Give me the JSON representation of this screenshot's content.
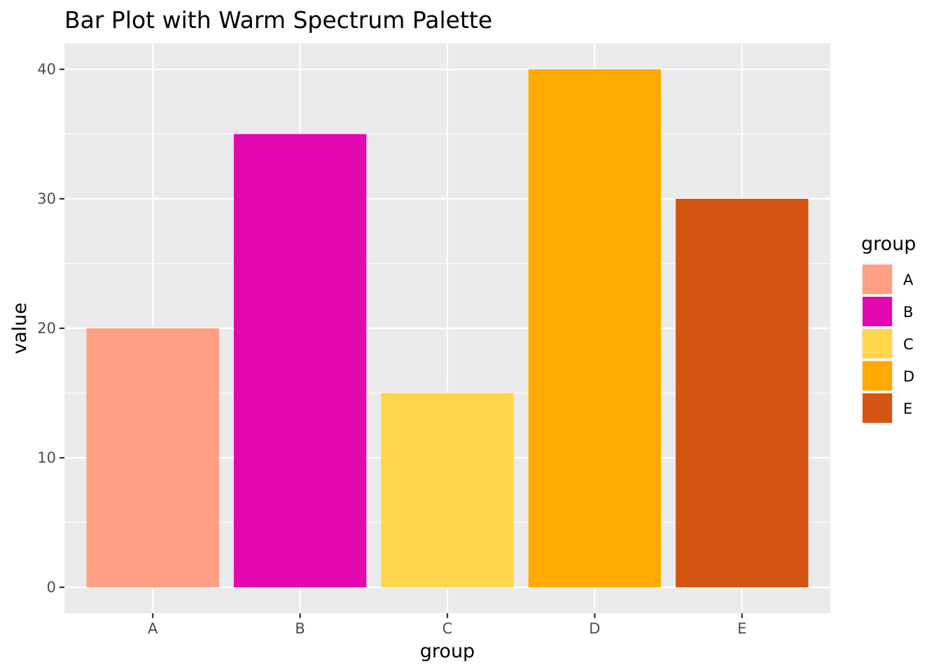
{
  "chart_data": {
    "type": "bar",
    "title": "Bar Plot with Warm Spectrum Palette",
    "xlabel": "group",
    "ylabel": "value",
    "categories": [
      "A",
      "B",
      "C",
      "D",
      "E"
    ],
    "values": [
      20,
      35,
      15,
      40,
      30
    ],
    "colors": [
      "#FFA084",
      "#E207AF",
      "#FFD64C",
      "#FFAA00",
      "#D55513"
    ],
    "ylim": [
      -2,
      42
    ],
    "yticks": [
      0,
      10,
      20,
      30,
      40
    ],
    "grid": true,
    "panel_background": "#EBEBEB",
    "legend": {
      "title": "group",
      "placement": "right",
      "entries": [
        "A",
        "B",
        "C",
        "D",
        "E"
      ]
    }
  }
}
